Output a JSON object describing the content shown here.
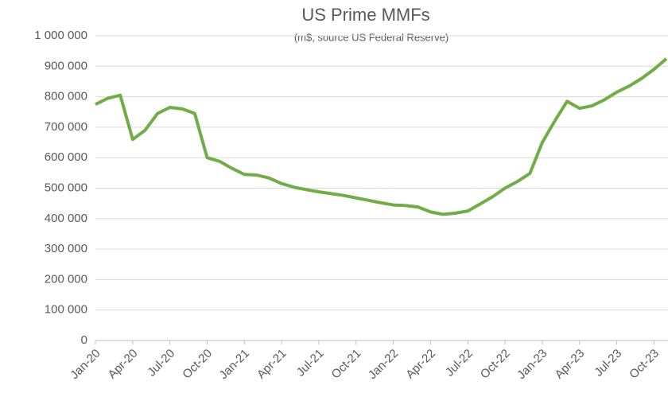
{
  "chart_data": {
    "type": "line",
    "title": "US Prime MMFs",
    "subtitle": "(m$, source US Federal Reserve)",
    "categories": [
      "Jan-20",
      null,
      null,
      "Apr-20",
      null,
      null,
      "Jul-20",
      null,
      null,
      "Oct-20",
      null,
      null,
      "Jan-21",
      null,
      null,
      "Apr-21",
      null,
      null,
      "Jul-21",
      null,
      null,
      "Oct-21",
      null,
      null,
      "Jan-22",
      null,
      null,
      "Apr-22",
      null,
      null,
      "Jul-22",
      null,
      null,
      "Oct-22",
      null,
      null,
      "Jan-23",
      null,
      null,
      "Apr-23",
      null,
      null,
      "Jul-23",
      null,
      null,
      "Oct-23",
      null
    ],
    "series": [
      {
        "name": "US Prime MMFs",
        "color": "#70ad47",
        "values": [
          775000,
          795000,
          805000,
          660000,
          690000,
          745000,
          765000,
          760000,
          745000,
          600000,
          588000,
          565000,
          545000,
          543000,
          533000,
          515000,
          503000,
          495000,
          488000,
          482000,
          476000,
          468000,
          460000,
          452000,
          445000,
          443000,
          438000,
          422000,
          414000,
          418000,
          425000,
          448000,
          472000,
          500000,
          522000,
          548000,
          650000,
          720000,
          785000,
          762000,
          770000,
          790000,
          815000,
          835000,
          860000,
          890000,
          925000
        ]
      }
    ],
    "ylim": [
      0,
      1000000
    ],
    "yticks": [
      0,
      {
        "value": 100000,
        "label": "100 000"
      },
      {
        "value": 200000,
        "label": "200 000"
      },
      {
        "value": 300000,
        "label": "300 000"
      },
      {
        "value": 400000,
        "label": "400 000"
      },
      {
        "value": 500000,
        "label": "500 000"
      },
      {
        "value": 600000,
        "label": "600 000"
      },
      {
        "value": 700000,
        "label": "700 000"
      },
      {
        "value": 800000,
        "label": "800 000"
      },
      {
        "value": 900000,
        "label": "900 000"
      },
      {
        "value": 1000000,
        "label": "1 000 000"
      }
    ],
    "grid": true
  }
}
